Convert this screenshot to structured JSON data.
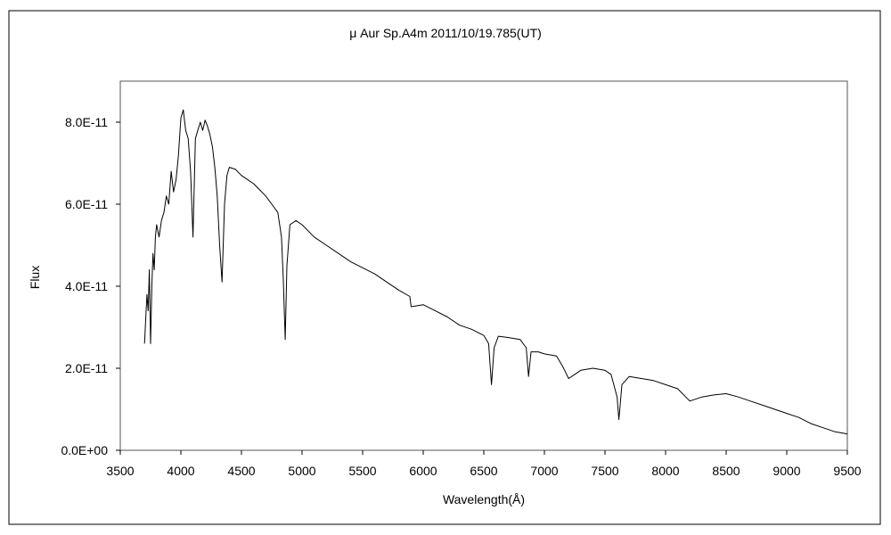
{
  "chart_data": {
    "type": "line",
    "title": "μ Aur  Sp.A4m   2011/10/19.785(UT)",
    "xlabel": "Wavelength(Å)",
    "ylabel": "Flux",
    "xlim": [
      3500,
      9500
    ],
    "ylim": [
      0,
      9e-11
    ],
    "x_ticks": [
      3500,
      4000,
      4500,
      5000,
      5500,
      6000,
      6500,
      7000,
      7500,
      8000,
      8500,
      9000,
      9500
    ],
    "x_tick_labels": [
      "3500",
      "4000",
      "4500",
      "5000",
      "5500",
      "6000",
      "6500",
      "7000",
      "7500",
      "8000",
      "8500",
      "9000",
      "9500"
    ],
    "y_ticks": [
      0,
      2e-11,
      4e-11,
      6e-11,
      8e-11
    ],
    "y_tick_labels": [
      "0.0E+00",
      "2.0E-11",
      "4.0E-11",
      "6.0E-11",
      "8.0E-11"
    ],
    "grid": false,
    "legend": "none",
    "line_color": "#000000",
    "series": [
      {
        "x": [
          3700,
          3720,
          3730,
          3740,
          3750,
          3760,
          3770,
          3780,
          3790,
          3800,
          3820,
          3840,
          3860,
          3880,
          3900,
          3920,
          3940,
          3960,
          3980,
          4000,
          4020,
          4040,
          4060,
          4080,
          4100,
          4120,
          4140,
          4160,
          4180,
          4200,
          4220,
          4240,
          4260,
          4280,
          4300,
          4320,
          4340,
          4360,
          4380,
          4400,
          4450,
          4500,
          4550,
          4600,
          4650,
          4700,
          4750,
          4800,
          4830,
          4845,
          4861,
          4875,
          4900,
          4950,
          5000,
          5100,
          5200,
          5300,
          5400,
          5500,
          5600,
          5700,
          5800,
          5890,
          5900,
          6000,
          6100,
          6200,
          6300,
          6400,
          6500,
          6540,
          6563,
          6585,
          6620,
          6700,
          6800,
          6850,
          6869,
          6890,
          6950,
          7000,
          7100,
          7150,
          7200,
          7250,
          7300,
          7400,
          7500,
          7550,
          7600,
          7615,
          7640,
          7700,
          7800,
          7900,
          8000,
          8100,
          8200,
          8300,
          8400,
          8500,
          8600,
          8700,
          8800,
          8900,
          9000,
          9100,
          9200,
          9300,
          9400,
          9500
        ],
        "y": [
          2.6e-11,
          3.8e-11,
          3.4e-11,
          4.4e-11,
          2.6e-11,
          4e-11,
          4.8e-11,
          4.4e-11,
          5.2e-11,
          5.5e-11,
          5.2e-11,
          5.6e-11,
          5.8e-11,
          6.2e-11,
          6e-11,
          6.8e-11,
          6.3e-11,
          6.6e-11,
          7.2e-11,
          8.1e-11,
          8.3e-11,
          7.8e-11,
          7.6e-11,
          6.8e-11,
          5.2e-11,
          7.6e-11,
          7.8e-11,
          8e-11,
          7.8e-11,
          8.05e-11,
          7.9e-11,
          7.7e-11,
          7.4e-11,
          6.9e-11,
          6.2e-11,
          5e-11,
          4.1e-11,
          6e-11,
          6.7e-11,
          6.9e-11,
          6.85e-11,
          6.7e-11,
          6.6e-11,
          6.5e-11,
          6.35e-11,
          6.2e-11,
          6e-11,
          5.8e-11,
          5.2e-11,
          4.2e-11,
          2.7e-11,
          4.5e-11,
          5.5e-11,
          5.6e-11,
          5.5e-11,
          5.2e-11,
          5e-11,
          4.8e-11,
          4.6e-11,
          4.45e-11,
          4.3e-11,
          4.1e-11,
          3.9e-11,
          3.75e-11,
          3.5e-11,
          3.55e-11,
          3.4e-11,
          3.25e-11,
          3.05e-11,
          2.95e-11,
          2.8e-11,
          2.6e-11,
          1.6e-11,
          2.5e-11,
          2.78e-11,
          2.75e-11,
          2.7e-11,
          2.5e-11,
          1.8e-11,
          2.4e-11,
          2.4e-11,
          2.35e-11,
          2.3e-11,
          2.05e-11,
          1.75e-11,
          1.85e-11,
          1.95e-11,
          2e-11,
          1.95e-11,
          1.85e-11,
          1.3e-11,
          7.5e-12,
          1.6e-11,
          1.8e-11,
          1.75e-11,
          1.7e-11,
          1.6e-11,
          1.5e-11,
          1.2e-11,
          1.3e-11,
          1.35e-11,
          1.38e-11,
          1.3e-11,
          1.2e-11,
          1.1e-11,
          1e-11,
          9e-12,
          8e-12,
          6.5e-12,
          5.5e-12,
          4.5e-12,
          4e-12
        ]
      }
    ]
  }
}
